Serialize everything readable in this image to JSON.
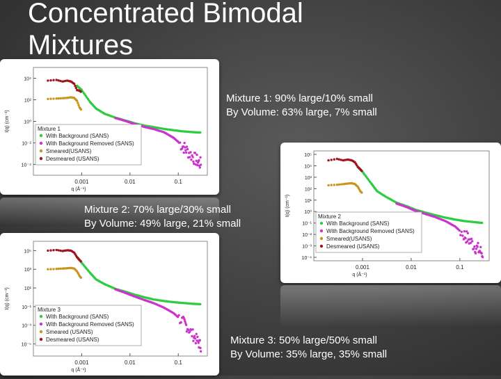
{
  "slide": {
    "title": "Concentrated Bimodal Mixtures"
  },
  "captions": [
    {
      "line1": "Mixture 1: 90% large/10% small",
      "line2": "By Volume: 63% large, 7% small"
    },
    {
      "line1": "Mixture 2: 70% large/30% small",
      "line2": "By Volume: 49% large, 21% small"
    },
    {
      "line1": "Mixture 3: 50% large/50% small",
      "line2": "By Volume: 35% large, 35% small"
    }
  ],
  "colors": {
    "with_background": "#2ecc40",
    "background_removed": "#cc33cc",
    "smeared": "#c8961e",
    "desmeared": "#a0141e"
  },
  "chart_data": [
    {
      "type": "scatter",
      "x_scale": "log",
      "y_scale": "log",
      "xlabel": "q (Å⁻¹)",
      "ylabel": "I(q) (cm⁻¹)",
      "xlim": [
        0.0001,
        0.4
      ],
      "ylim": [
        1e-05,
        100000
      ],
      "x_ticks": [
        "0.001",
        "0.01",
        "0.1"
      ],
      "y_ticks": [
        "10⁻⁴",
        "10⁻²",
        "10⁰",
        "10²",
        "10⁴"
      ],
      "y_tick_values": [
        0.0001,
        0.01,
        1,
        100,
        10000
      ],
      "legend_title": "Mixture 1",
      "legend_position": "bottom-left",
      "series": [
        {
          "name": "With Background (SANS)",
          "x": [
            0.0008,
            0.001,
            0.0015,
            0.002,
            0.003,
            0.005,
            0.008,
            0.012,
            0.02,
            0.03,
            0.05,
            0.08,
            0.12,
            0.2,
            0.3
          ],
          "y": [
            2000,
            800,
            60,
            15,
            5,
            2.2,
            1.2,
            0.7,
            0.4,
            0.3,
            0.2,
            0.15,
            0.12,
            0.1,
            0.09
          ]
        },
        {
          "name": "With Background Removed (SANS)",
          "x": [
            0.005,
            0.008,
            0.012,
            0.02,
            0.03,
            0.05,
            0.08,
            0.12,
            0.15,
            0.2,
            0.25,
            0.3
          ],
          "y": [
            2.0,
            1.1,
            0.6,
            0.3,
            0.2,
            0.1,
            0.03,
            0.006,
            0.002,
            0.0005,
            0.0002,
            0.0001
          ]
        },
        {
          "name": "Smeared(USANS)",
          "x": [
            0.0002,
            0.0003,
            0.0004,
            0.0005,
            0.0006,
            0.0007,
            0.0008,
            0.0009,
            0.001
          ],
          "y": [
            120,
            130,
            140,
            150,
            170,
            150,
            80,
            20,
            10
          ]
        },
        {
          "name": "Desmeared (USANS)",
          "x": [
            0.0002,
            0.0003,
            0.0004,
            0.0005,
            0.0006,
            0.0007,
            0.0008,
            0.0009,
            0.001
          ],
          "y": [
            6000,
            7000,
            5000,
            6000,
            5000,
            3000,
            800,
            700,
            500
          ]
        }
      ]
    },
    {
      "type": "scatter",
      "x_scale": "log",
      "y_scale": "log",
      "xlabel": "q (Å⁻¹)",
      "ylabel": "I(q) (cm⁻¹)",
      "xlim": [
        0.0001,
        0.4
      ],
      "ylim": [
        5e-05,
        200000
      ],
      "x_ticks": [
        "0.001",
        "0.01",
        "0.1"
      ],
      "y_ticks": [
        "10⁻⁴",
        "10⁻³",
        "10⁻²",
        "10⁻¹",
        "10⁰",
        "10¹",
        "10²",
        "10³",
        "10⁴",
        "10⁵"
      ],
      "y_tick_values": [
        0.0001,
        0.001,
        0.01,
        0.1,
        1,
        10,
        100,
        1000,
        10000,
        100000
      ],
      "legend_title": "Mixture 2",
      "legend_position": "bottom-left",
      "series": [
        {
          "name": "With Background (SANS)",
          "x": [
            0.0008,
            0.001,
            0.0015,
            0.002,
            0.003,
            0.005,
            0.008,
            0.012,
            0.02,
            0.03,
            0.05,
            0.08,
            0.12,
            0.2,
            0.3
          ],
          "y": [
            8000,
            3000,
            300,
            60,
            20,
            6,
            3,
            1.5,
            0.8,
            0.5,
            0.3,
            0.2,
            0.15,
            0.12,
            0.1
          ]
        },
        {
          "name": "With Background Removed (SANS)",
          "x": [
            0.005,
            0.008,
            0.012,
            0.02,
            0.03,
            0.05,
            0.08,
            0.12,
            0.15,
            0.2,
            0.25,
            0.3
          ],
          "y": [
            5,
            2.5,
            1.2,
            0.6,
            0.35,
            0.15,
            0.05,
            0.01,
            0.004,
            0.001,
            0.0004,
            0.0002
          ]
        },
        {
          "name": "Smeared(USANS)",
          "x": [
            0.0002,
            0.0003,
            0.0004,
            0.0005,
            0.0006,
            0.0007,
            0.0008,
            0.0009,
            0.001
          ],
          "y": [
            200,
            220,
            250,
            280,
            300,
            250,
            150,
            60,
            40
          ]
        },
        {
          "name": "Desmeared (USANS)",
          "x": [
            0.0002,
            0.0003,
            0.0004,
            0.0005,
            0.0006,
            0.0007,
            0.0008,
            0.0009,
            0.001
          ],
          "y": [
            30000,
            40000,
            30000,
            35000,
            30000,
            20000,
            8000,
            5000,
            3000
          ]
        }
      ]
    },
    {
      "type": "scatter",
      "x_scale": "log",
      "y_scale": "log",
      "xlabel": "q (Å⁻¹)",
      "ylabel": "I(q) (cm⁻¹)",
      "xlim": [
        0.0001,
        0.4
      ],
      "ylim": [
        5e-07,
        1000000
      ],
      "x_ticks": [
        "0.001",
        "0.01",
        "0.1"
      ],
      "y_ticks": [
        "10⁻⁵",
        "10⁻³",
        "10⁻¹",
        "10¹",
        "10³",
        "10⁵"
      ],
      "y_tick_values": [
        1e-05,
        0.001,
        0.1,
        10,
        1000,
        100000
      ],
      "legend_title": "Mixture 3",
      "legend_position": "bottom-left",
      "series": [
        {
          "name": "With Background (SANS)",
          "x": [
            0.0008,
            0.001,
            0.0015,
            0.002,
            0.003,
            0.005,
            0.008,
            0.012,
            0.02,
            0.03,
            0.05,
            0.08,
            0.12,
            0.2,
            0.3
          ],
          "y": [
            20000,
            5000,
            400,
            80,
            25,
            8,
            4,
            2,
            1,
            0.6,
            0.4,
            0.3,
            0.25,
            0.2,
            0.18
          ]
        },
        {
          "name": "With Background Removed (SANS)",
          "x": [
            0.005,
            0.008,
            0.012,
            0.02,
            0.03,
            0.05,
            0.08,
            0.12,
            0.15,
            0.2,
            0.25,
            0.3
          ],
          "y": [
            7,
            3,
            1.3,
            0.5,
            0.25,
            0.08,
            0.02,
            0.003,
            0.0008,
            0.0001,
            2e-05,
            5e-06
          ]
        },
        {
          "name": "Smeared (USANS)",
          "x": [
            0.0002,
            0.0003,
            0.0004,
            0.0005,
            0.0006,
            0.0007,
            0.0008,
            0.0009,
            0.001
          ],
          "y": [
            1000,
            1100,
            1200,
            1300,
            1400,
            1200,
            600,
            200,
            100
          ]
        },
        {
          "name": "Desmeared (USANS)",
          "x": [
            0.0002,
            0.0003,
            0.0004,
            0.0005,
            0.0006,
            0.0007,
            0.0008,
            0.0009,
            0.001
          ],
          "y": [
            100000,
            120000,
            90000,
            110000,
            100000,
            60000,
            20000,
            10000,
            6000
          ]
        }
      ]
    }
  ]
}
